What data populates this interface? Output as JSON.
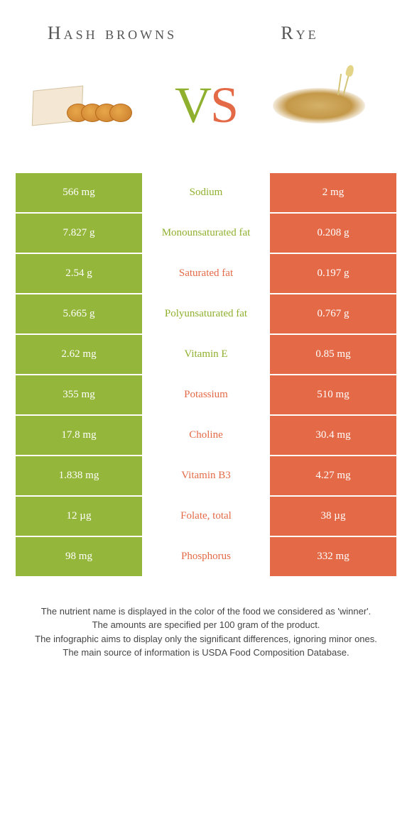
{
  "header": {
    "left_title": "Hash browns",
    "right_title": "Rye"
  },
  "vs": {
    "v": "V",
    "s": "S"
  },
  "colors": {
    "green": "#94b63a",
    "orange": "#e46a47",
    "label_green": "#8fb02e",
    "label_orange": "#e46a47",
    "background": "#ffffff"
  },
  "rows": [
    {
      "left": "566 mg",
      "label": "Sodium",
      "right": "2 mg",
      "winner": "left"
    },
    {
      "left": "7.827 g",
      "label": "Monounsaturated fat",
      "right": "0.208 g",
      "winner": "left"
    },
    {
      "left": "2.54 g",
      "label": "Saturated fat",
      "right": "0.197 g",
      "winner": "right"
    },
    {
      "left": "5.665 g",
      "label": "Polyunsaturated fat",
      "right": "0.767 g",
      "winner": "left"
    },
    {
      "left": "2.62 mg",
      "label": "Vitamin E",
      "right": "0.85 mg",
      "winner": "left"
    },
    {
      "left": "355 mg",
      "label": "Potassium",
      "right": "510 mg",
      "winner": "right"
    },
    {
      "left": "17.8 mg",
      "label": "Choline",
      "right": "30.4 mg",
      "winner": "right"
    },
    {
      "left": "1.838 mg",
      "label": "Vitamin B3",
      "right": "4.27 mg",
      "winner": "right"
    },
    {
      "left": "12 µg",
      "label": "Folate, total",
      "right": "38 µg",
      "winner": "right"
    },
    {
      "left": "98 mg",
      "label": "Phosphorus",
      "right": "332 mg",
      "winner": "right"
    }
  ],
  "footer": {
    "line1": "The nutrient name is displayed in the color of the food we considered as 'winner'.",
    "line2": "The amounts are specified per 100 gram of the product.",
    "line3": "The infographic aims to display only the significant differences, ignoring minor ones.",
    "line4": "The main source of information is USDA Food Composition Database."
  }
}
